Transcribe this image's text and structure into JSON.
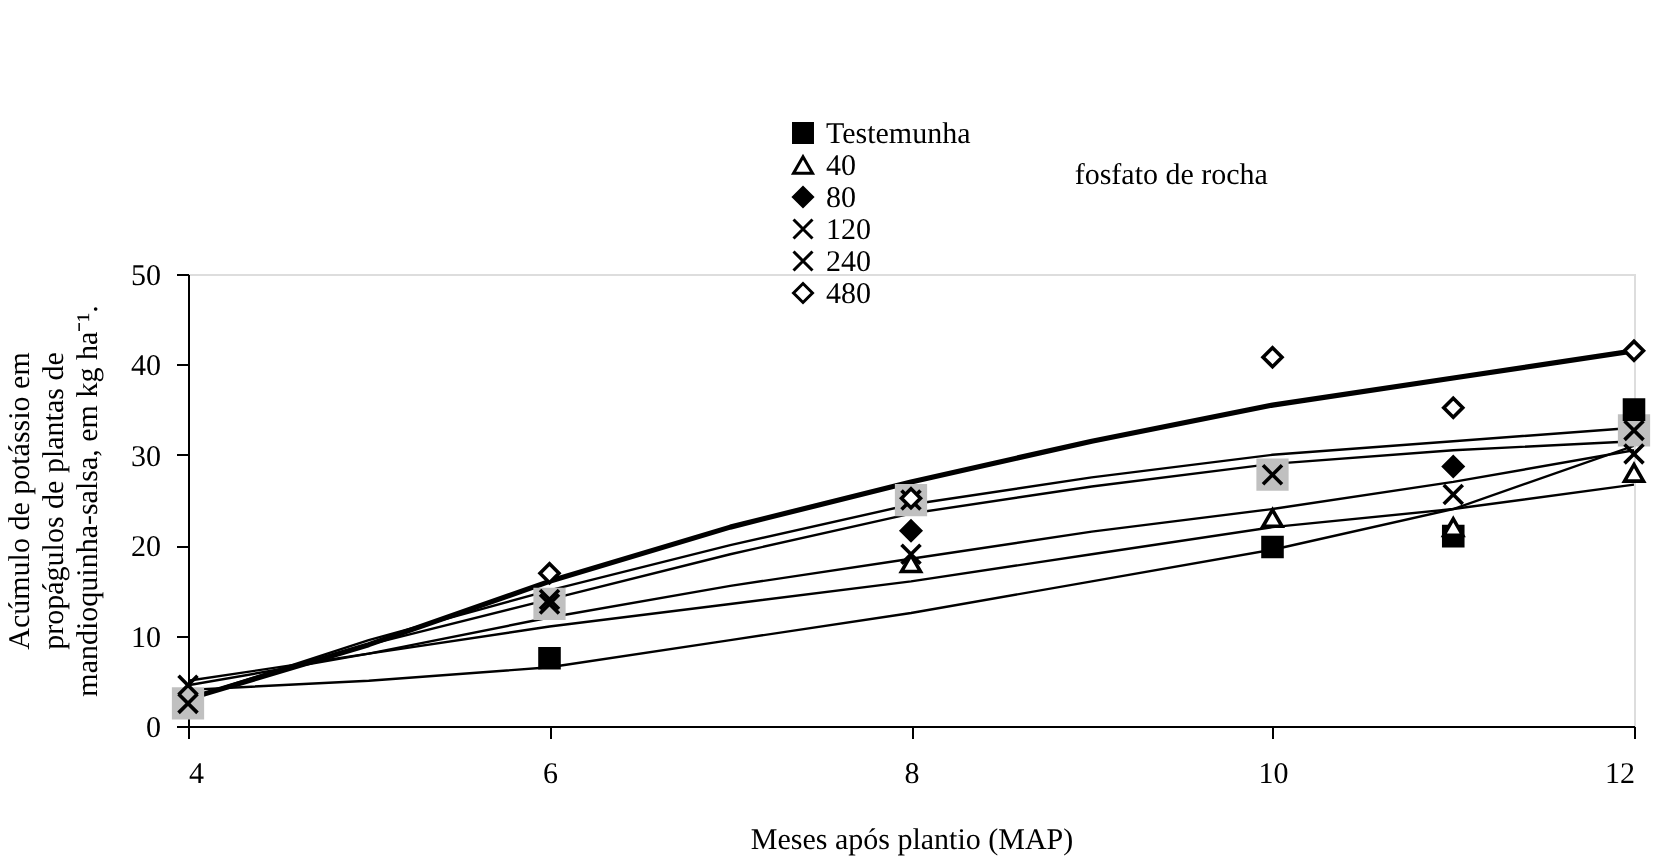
{
  "chart_data": {
    "type": "scatter",
    "xlabel": "Meses após plantio (MAP)",
    "ylabel": "Acúmulo de potássio em propágulos de plantas de mandioquinha-salsa, em kg ha⁻¹.",
    "annotations": [
      "fosfato de rocha"
    ],
    "xlim": [
      4,
      12
    ],
    "xticks": [
      4,
      6,
      8,
      10,
      12
    ],
    "ylim": [
      0,
      50
    ],
    "yticks": [
      0,
      10,
      20,
      30,
      40,
      50
    ],
    "legend": "top",
    "series": [
      {
        "name": "Testemunha",
        "color": "#000000",
        "marker": "square",
        "x": [
          6,
          10,
          11,
          12
        ],
        "values": [
          7.5,
          19.8,
          21,
          35
        ]
      },
      {
        "name": "40",
        "color": "#000000",
        "marker": "triangle",
        "x": [
          8,
          10,
          11,
          12
        ],
        "values": [
          18,
          23,
          22,
          28
        ]
      },
      {
        "name": "80",
        "color": "#000000",
        "marker": "diamond",
        "x": [
          8,
          11
        ],
        "values": [
          21.6,
          28.7
        ]
      },
      {
        "name": "120",
        "color": "#000000",
        "marker": "cross",
        "x": [
          4,
          6,
          8,
          11,
          12
        ],
        "values": [
          4.5,
          14,
          19,
          25.6,
          30.1
        ]
      },
      {
        "name": "240",
        "color": "#000000",
        "marker": "cross",
        "x": [
          4,
          6,
          8,
          10,
          12
        ],
        "values": [
          2.5,
          13.5,
          25,
          27.8,
          32.7
        ]
      },
      {
        "name": "480",
        "color": "#000000",
        "marker": "diamond",
        "x": [
          6,
          8,
          10,
          11,
          12
        ],
        "values": [
          16.9,
          25.2,
          40.8,
          35.2,
          41.5
        ]
      },
      {
        "type": "line",
        "color": "#000000",
        "x": [
          4,
          5,
          6,
          7,
          8,
          9,
          10,
          11,
          12
        ],
        "values": [
          4,
          5,
          6.5,
          9.5,
          12.5,
          16,
          19.5,
          24,
          31
        ]
      },
      {
        "type": "line",
        "color": "#000000",
        "x": [
          4,
          5,
          6,
          7,
          8,
          9,
          10,
          11,
          12
        ],
        "values": [
          5,
          8,
          11,
          13.5,
          16,
          19,
          22,
          24,
          26.7
        ]
      },
      {
        "type": "line",
        "color": "#000000",
        "x": [
          4,
          5,
          6,
          7,
          8,
          9,
          10,
          11,
          12
        ],
        "values": [
          4.5,
          8,
          12,
          15.5,
          18.5,
          21.5,
          24,
          27,
          30.5
        ]
      },
      {
        "type": "line",
        "color": "#000000",
        "x": [
          4,
          5,
          6,
          7,
          8,
          9,
          10,
          11,
          12
        ],
        "values": [
          3,
          9,
          14,
          19,
          23.5,
          26.5,
          29,
          30.5,
          31.5
        ]
      },
      {
        "type": "line",
        "color": "#000000",
        "x": [
          4,
          5,
          6,
          7,
          8,
          9,
          10,
          11,
          12
        ],
        "values": [
          3,
          9.5,
          15,
          20,
          24.5,
          27.5,
          30,
          31.5,
          33
        ]
      },
      {
        "type": "line",
        "color": "#000000",
        "x": [
          4,
          5,
          6,
          7,
          8,
          9,
          10,
          11,
          12
        ],
        "values": [
          3,
          9,
          16,
          22,
          27,
          31.5,
          35.5,
          38.5,
          41.5
        ]
      }
    ]
  }
}
